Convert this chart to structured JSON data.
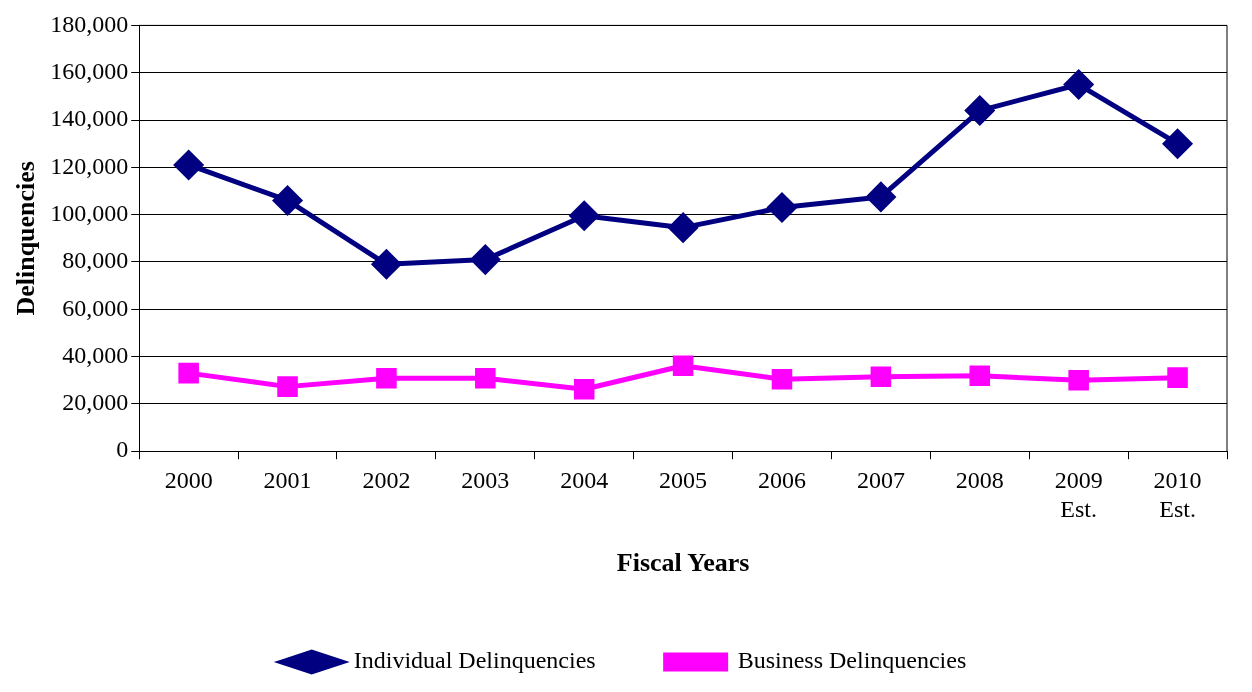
{
  "chart_data": {
    "type": "line",
    "xlabel": "Fiscal Years",
    "ylabel": "Delinquencies",
    "categories": [
      "2000",
      "2001",
      "2002",
      "2003",
      "2004",
      "2005",
      "2006",
      "2007",
      "2008",
      "2009\nEst.",
      "2010\nEst."
    ],
    "series": [
      {
        "name": "Individual Delinquencies",
        "color": "#000080",
        "marker": "diamond",
        "values": [
          121000,
          106000,
          79000,
          81000,
          99500,
          94500,
          103000,
          107500,
          144000,
          155000,
          130000
        ]
      },
      {
        "name": "Business Delinquencies",
        "color": "#ff00ff",
        "marker": "square",
        "values": [
          33000,
          27300,
          30800,
          30800,
          26200,
          36100,
          30400,
          31500,
          31900,
          30000,
          31100
        ]
      }
    ],
    "ylim": [
      0,
      180000
    ],
    "yticks": [
      0,
      {
        "value": 20000,
        "label": "20,000"
      },
      {
        "value": 40000,
        "label": "40,000"
      },
      {
        "value": 60000,
        "label": "60,000"
      },
      {
        "value": 80000,
        "label": "80,000"
      },
      {
        "value": 100000,
        "label": "100,000"
      },
      {
        "value": 120000,
        "label": "120,000"
      },
      {
        "value": 140000,
        "label": "140,000"
      },
      {
        "value": 160000,
        "label": "160,000"
      },
      {
        "value": 180000,
        "label": "180,000"
      }
    ],
    "grid": "y",
    "legend": "bottom",
    "line_style": "solid"
  }
}
